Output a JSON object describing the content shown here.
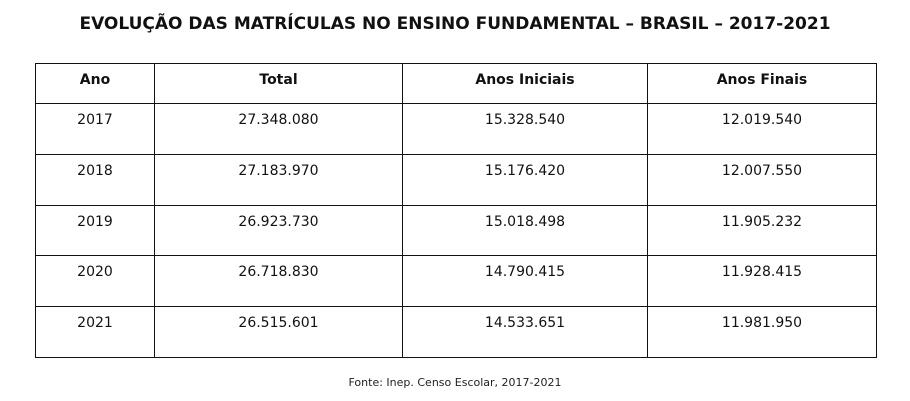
{
  "title": "EVOLUÇÃO DAS MATRÍCULAS NO ENSINO FUNDAMENTAL – BRASIL – 2017-2021",
  "table": {
    "headers": [
      "Ano",
      "Total",
      "Anos Iniciais",
      "Anos Finais"
    ],
    "rows": [
      [
        "2017",
        "27.348.080",
        "15.328.540",
        "12.019.540"
      ],
      [
        "2018",
        "27.183.970",
        "15.176.420",
        "12.007.550"
      ],
      [
        "2019",
        "26.923.730",
        "15.018.498",
        "11.905.232"
      ],
      [
        "2020",
        "26.718.830",
        "14.790.415",
        "11.928.415"
      ],
      [
        "2021",
        "26.515.601",
        "14.533.651",
        "11.981.950"
      ]
    ]
  },
  "source": "Fonte: Inep. Censo Escolar, 2017-2021"
}
